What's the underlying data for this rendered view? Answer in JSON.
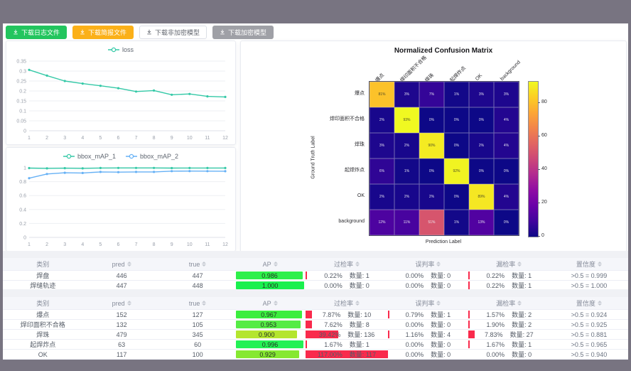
{
  "toolbar": {
    "buttons": [
      {
        "label": "下载日志文件",
        "style": "green",
        "name": "download-log-button"
      },
      {
        "label": "下载简报文件",
        "style": "orange",
        "name": "download-report-button"
      },
      {
        "label": "下载非加密模型",
        "style": "plain",
        "name": "download-unencrypted-model-button"
      },
      {
        "label": "下载加密模型",
        "style": "gray",
        "name": "download-encrypted-model-button"
      }
    ]
  },
  "chart_data": [
    {
      "type": "line",
      "title": "",
      "x": [
        1,
        2,
        3,
        4,
        5,
        6,
        7,
        8,
        9,
        10,
        11,
        12
      ],
      "series": [
        {
          "name": "loss",
          "color": "#35c9a7",
          "values": [
            0.306,
            0.277,
            0.25,
            0.237,
            0.226,
            0.214,
            0.197,
            0.202,
            0.181,
            0.185,
            0.173,
            0.17
          ]
        }
      ],
      "ylim": [
        0,
        0.35
      ],
      "yticks": [
        0,
        0.05,
        0.1,
        0.15,
        0.2,
        0.25,
        0.3,
        0.35
      ],
      "ytick_labels": [
        "0",
        "0.05",
        "0.1",
        "0.15",
        "0.2",
        "0.25",
        "0.3",
        "0.35"
      ],
      "legend_position": "top",
      "grid": true
    },
    {
      "type": "line",
      "title": "",
      "x": [
        1,
        2,
        3,
        4,
        5,
        6,
        7,
        8,
        9,
        10,
        11,
        12
      ],
      "series": [
        {
          "name": "bbox_mAP_1",
          "color": "#35c9a7",
          "values": [
            0.995,
            0.991,
            0.994,
            0.991,
            0.996,
            0.997,
            0.997,
            0.997,
            0.995,
            0.996,
            0.996,
            0.996
          ]
        },
        {
          "name": "bbox_mAP_2",
          "color": "#66b1f5",
          "values": [
            0.85,
            0.91,
            0.928,
            0.924,
            0.94,
            0.937,
            0.94,
            0.94,
            0.951,
            0.952,
            0.951,
            0.95
          ]
        }
      ],
      "ylim": [
        0,
        1
      ],
      "yticks": [
        0,
        0.2,
        0.4,
        0.6,
        0.8,
        1
      ],
      "ytick_labels": [
        "0",
        "0.2",
        "0.4",
        "0.6",
        "0.8",
        "1"
      ],
      "legend_position": "top",
      "grid": true
    },
    {
      "type": "heatmap",
      "title": "Normalized Confusion Matrix",
      "xlabel": "Prediction Label",
      "ylabel": "Ground Truth Label",
      "categories": [
        "爆点",
        "焊印面积不合格",
        "焊珠",
        "起焊炸点",
        "OK",
        "background"
      ],
      "matrix": [
        [
          81,
          3,
          7,
          1,
          3,
          3
        ],
        [
          2,
          93,
          0,
          0,
          0,
          4
        ],
        [
          3,
          2,
          90,
          0,
          2,
          4
        ],
        [
          6,
          1,
          0,
          92,
          0,
          0
        ],
        [
          2,
          2,
          2,
          0,
          89,
          4
        ],
        [
          12,
          11,
          51,
          1,
          13,
          0
        ]
      ],
      "value_suffix": "%",
      "colormap": "plasma",
      "colorbar": {
        "vmax": 93,
        "ticks": [
          0,
          20,
          40,
          60,
          80
        ]
      }
    }
  ],
  "labels": {
    "count_label": "数量:"
  },
  "tables": [
    {
      "headers": [
        {
          "label": "类别",
          "sortable": false
        },
        {
          "label": "pred",
          "sortable": true
        },
        {
          "label": "true",
          "sortable": true
        },
        {
          "label": "AP",
          "sortable": true
        },
        {
          "label": "过检率",
          "sortable": true
        },
        {
          "label": "误判率",
          "sortable": true
        },
        {
          "label": "漏检率",
          "sortable": true
        },
        {
          "label": "置信度",
          "sortable": true
        }
      ],
      "rows": [
        {
          "label": "焊盘",
          "pred": 446,
          "true": 447,
          "ap": "0.986",
          "ap_color": "#2ef04a",
          "rates": [
            {
              "pct": "0.22%",
              "count": 1,
              "w": 0.22
            },
            {
              "pct": "0.00%",
              "count": 0,
              "w": 0
            },
            {
              "pct": "0.22%",
              "count": 1,
              "w": 0.22
            }
          ],
          "conf": ">0.5 = 0.999"
        },
        {
          "label": "焊缝轨迹",
          "pred": 447,
          "true": 448,
          "ap": "1.000",
          "ap_color": "#19f04e",
          "rates": [
            {
              "pct": "0.00%",
              "count": 0,
              "w": 0
            },
            {
              "pct": "0.00%",
              "count": 0,
              "w": 0
            },
            {
              "pct": "0.22%",
              "count": 1,
              "w": 0.22
            }
          ],
          "conf": ">0.5 = 1.000"
        }
      ]
    },
    {
      "headers": [
        {
          "label": "类别",
          "sortable": false
        },
        {
          "label": "pred",
          "sortable": true
        },
        {
          "label": "true",
          "sortable": true
        },
        {
          "label": "AP",
          "sortable": true
        },
        {
          "label": "过检率",
          "sortable": true
        },
        {
          "label": "误判率",
          "sortable": true
        },
        {
          "label": "漏检率",
          "sortable": true
        },
        {
          "label": "置信度",
          "sortable": true
        }
      ],
      "rows": [
        {
          "label": "爆点",
          "pred": 152,
          "true": 127,
          "ap": "0.967",
          "ap_color": "#3bee3e",
          "rates": [
            {
              "pct": "7.87%",
              "count": 10,
              "w": 7.87
            },
            {
              "pct": "0.79%",
              "count": 1,
              "w": 0.79
            },
            {
              "pct": "1.57%",
              "count": 2,
              "w": 1.57
            }
          ],
          "conf": ">0.5 = 0.924"
        },
        {
          "label": "焊印面积不合格",
          "pred": 132,
          "true": 105,
          "ap": "0.953",
          "ap_color": "#55ec45",
          "rates": [
            {
              "pct": "7.62%",
              "count": 8,
              "w": 7.62
            },
            {
              "pct": "0.00%",
              "count": 0,
              "w": 0
            },
            {
              "pct": "1.90%",
              "count": 2,
              "w": 1.9
            }
          ],
          "conf": ">0.5 = 0.925"
        },
        {
          "label": "焊珠",
          "pred": 479,
          "true": 345,
          "ap": "0.900",
          "ap_color": "#b4e52f",
          "rates": [
            {
              "pct": "39.42%",
              "count": 136,
              "w": 39.42
            },
            {
              "pct": "1.16%",
              "count": 4,
              "w": 1.16
            },
            {
              "pct": "7.83%",
              "count": 27,
              "w": 7.83
            }
          ],
          "conf": ">0.5 = 0.881"
        },
        {
          "label": "起焊炸点",
          "pred": 63,
          "true": 60,
          "ap": "0.996",
          "ap_color": "#23f155",
          "rates": [
            {
              "pct": "1.67%",
              "count": 1,
              "w": 1.67
            },
            {
              "pct": "0.00%",
              "count": 0,
              "w": 0
            },
            {
              "pct": "1.67%",
              "count": 1,
              "w": 1.67
            }
          ],
          "conf": ">0.5 = 0.965"
        },
        {
          "label": "OK",
          "pred": 117,
          "true": 100,
          "ap": "0.929",
          "ap_color": "#86e831",
          "rates": [
            {
              "pct": "117.00%",
              "count": 117,
              "w": 100
            },
            {
              "pct": "0.00%",
              "count": 0,
              "w": 0
            },
            {
              "pct": "0.00%",
              "count": 0,
              "w": 0
            }
          ],
          "conf": ">0.5 = 0.940"
        }
      ]
    }
  ]
}
